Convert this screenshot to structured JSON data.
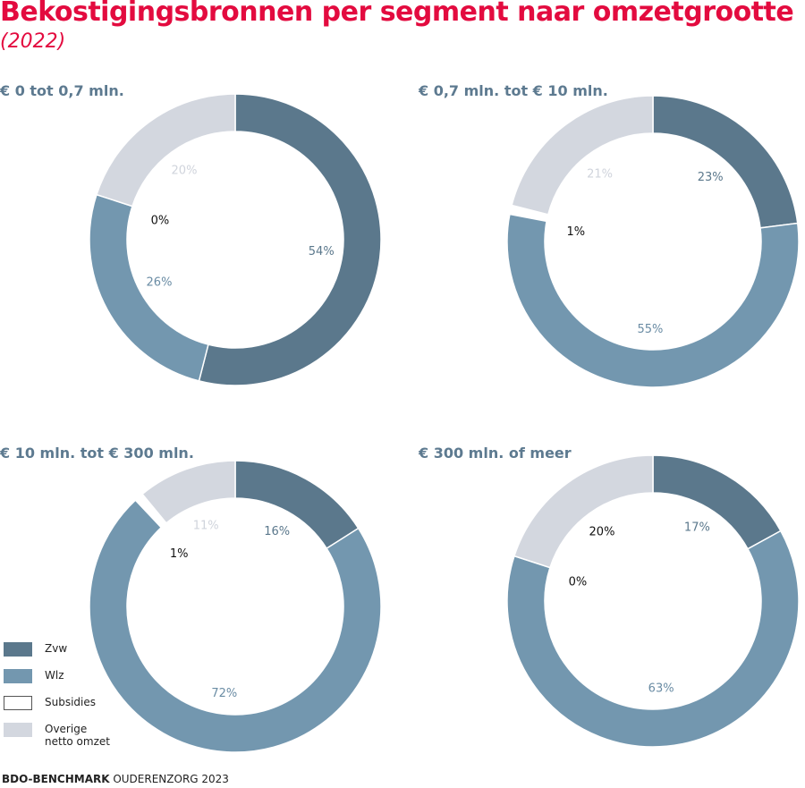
{
  "chart_data": {
    "type": "pie",
    "title": "Bekostigingsbronnen per segment naar omzetgrootte",
    "subtitle": "(2022)",
    "series_names": [
      "Zvw",
      "Wlz",
      "Subsidies",
      "Overige netto omzet"
    ],
    "legend": {
      "placement": "bottom-left",
      "items": [
        {
          "label": "Zvw",
          "color": "#5b788c"
        },
        {
          "label": "Wlz",
          "color": "#7397af"
        },
        {
          "label": "Subsidies",
          "color": "#ffffff"
        },
        {
          "label_line1": "Overige",
          "label_line2": "netto omzet",
          "color": "#d3d7df"
        }
      ]
    },
    "charts": [
      {
        "title": "€ 0 tot 0,7 mln.",
        "values": [
          54,
          26,
          0,
          20
        ],
        "labels": [
          "54%",
          "26%",
          "0%",
          "20%"
        ]
      },
      {
        "title": "€ 0,7 mln. tot € 10 mln.",
        "values": [
          23,
          55,
          1,
          21
        ],
        "labels": [
          "23%",
          "55%",
          "1%",
          "21%"
        ]
      },
      {
        "title": "€ 10 mln. tot € 300 mln.",
        "values": [
          16,
          72,
          1,
          11
        ],
        "labels": [
          "16%",
          "72%",
          "1%",
          "11%"
        ]
      },
      {
        "title": "€ 300 mln. of meer",
        "values": [
          17,
          63,
          0,
          20
        ],
        "labels": [
          "17%",
          "63%",
          "0%",
          "20%"
        ]
      }
    ]
  },
  "footer": {
    "bold": "BDO-BENCHMARK",
    "rest": " OUDERENZORG 2023"
  }
}
